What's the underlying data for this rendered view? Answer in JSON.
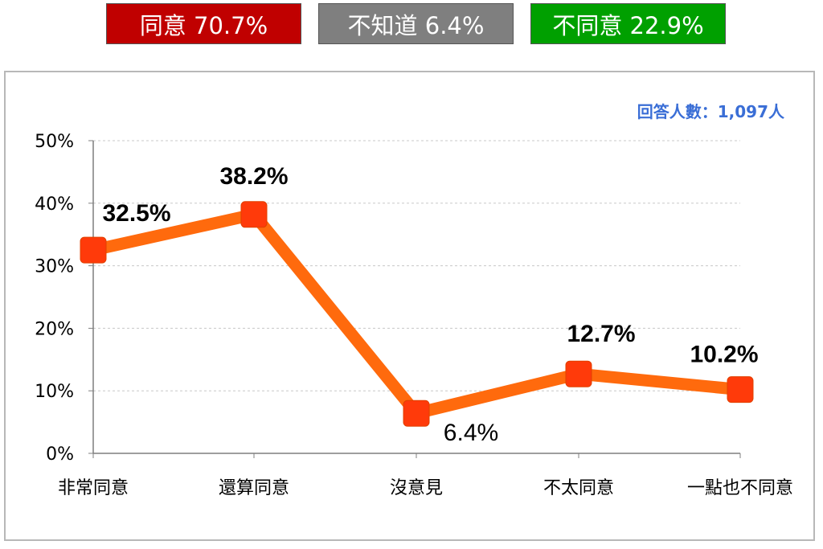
{
  "summary": {
    "agree": "同意 70.7%",
    "unknown": "不知道 6.4%",
    "disagree": "不同意 22.9%"
  },
  "note": "回答人數：1,097人",
  "colors": {
    "agree": "#c00000",
    "unknown": "#7f7f7f",
    "disagree": "#00a000",
    "line": "#ff6a0d",
    "marker": "#ff3a0a",
    "note": "#3a6ed6"
  },
  "chart_data": {
    "type": "line",
    "categories": [
      "非常同意",
      "還算同意",
      "沒意見",
      "不太同意",
      "一點也不同意"
    ],
    "values": [
      32.5,
      38.2,
      6.4,
      12.7,
      10.2
    ],
    "value_labels": [
      "32.5%",
      "38.2%",
      "6.4%",
      "12.7%",
      "10.2%"
    ],
    "ylim": [
      0,
      50
    ],
    "yticks": [
      0,
      10,
      20,
      30,
      40,
      50
    ],
    "ytick_labels": [
      "0%",
      "10%",
      "20%",
      "30%",
      "40%",
      "50%"
    ],
    "grid": true
  }
}
